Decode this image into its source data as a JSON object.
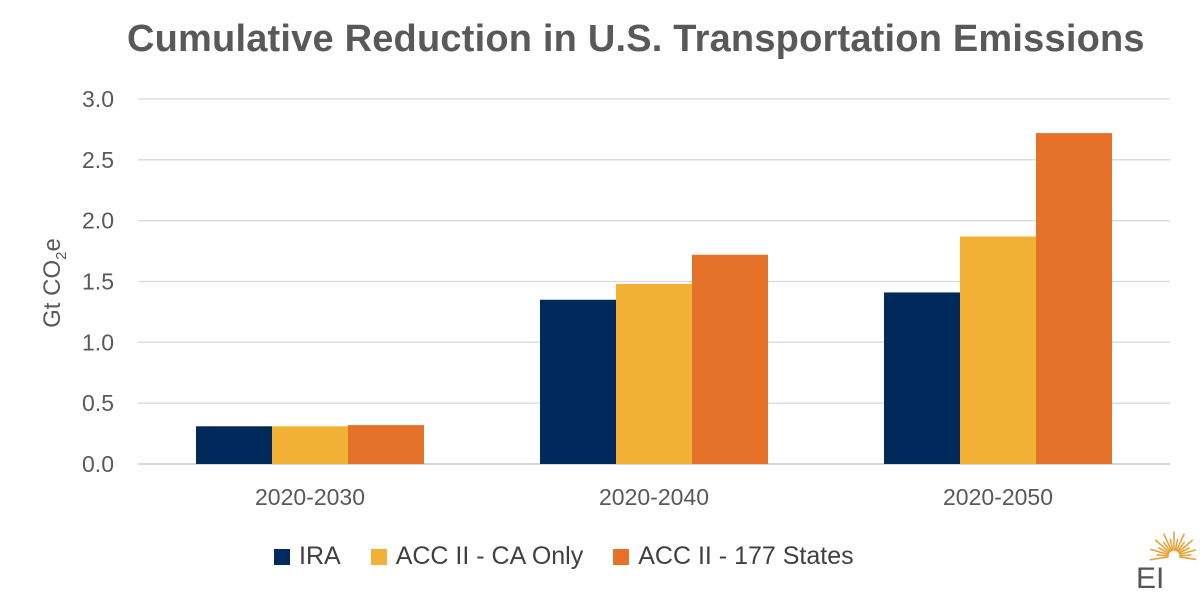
{
  "chart_data": {
    "type": "bar",
    "title": "Cumulative Reduction in U.S. Transportation Emissions",
    "ylabel": "Gt CO2e",
    "ylabel_main": "Gt CO",
    "ylabel_sub": "2",
    "ylabel_end": "e",
    "categories": [
      "2020-2030",
      "2020-2040",
      "2020-2050"
    ],
    "series": [
      {
        "name": "IRA",
        "color": "#002A5C",
        "values": [
          0.31,
          1.35,
          1.41
        ]
      },
      {
        "name": "ACC II - CA Only",
        "color": "#F2B134",
        "values": [
          0.31,
          1.48,
          1.87
        ]
      },
      {
        "name": "ACC II - 177 States",
        "color": "#E6722A",
        "values": [
          0.32,
          1.72,
          2.72
        ]
      }
    ],
    "ylim": [
      0,
      3.0
    ],
    "yticks": [
      "0.0",
      "0.5",
      "1.0",
      "1.5",
      "2.0",
      "2.5",
      "3.0"
    ],
    "grid": true,
    "legend_position": "bottom"
  },
  "logo": {
    "text": "EI",
    "icon": "sunburst-icon",
    "color": "#E8A33A"
  }
}
